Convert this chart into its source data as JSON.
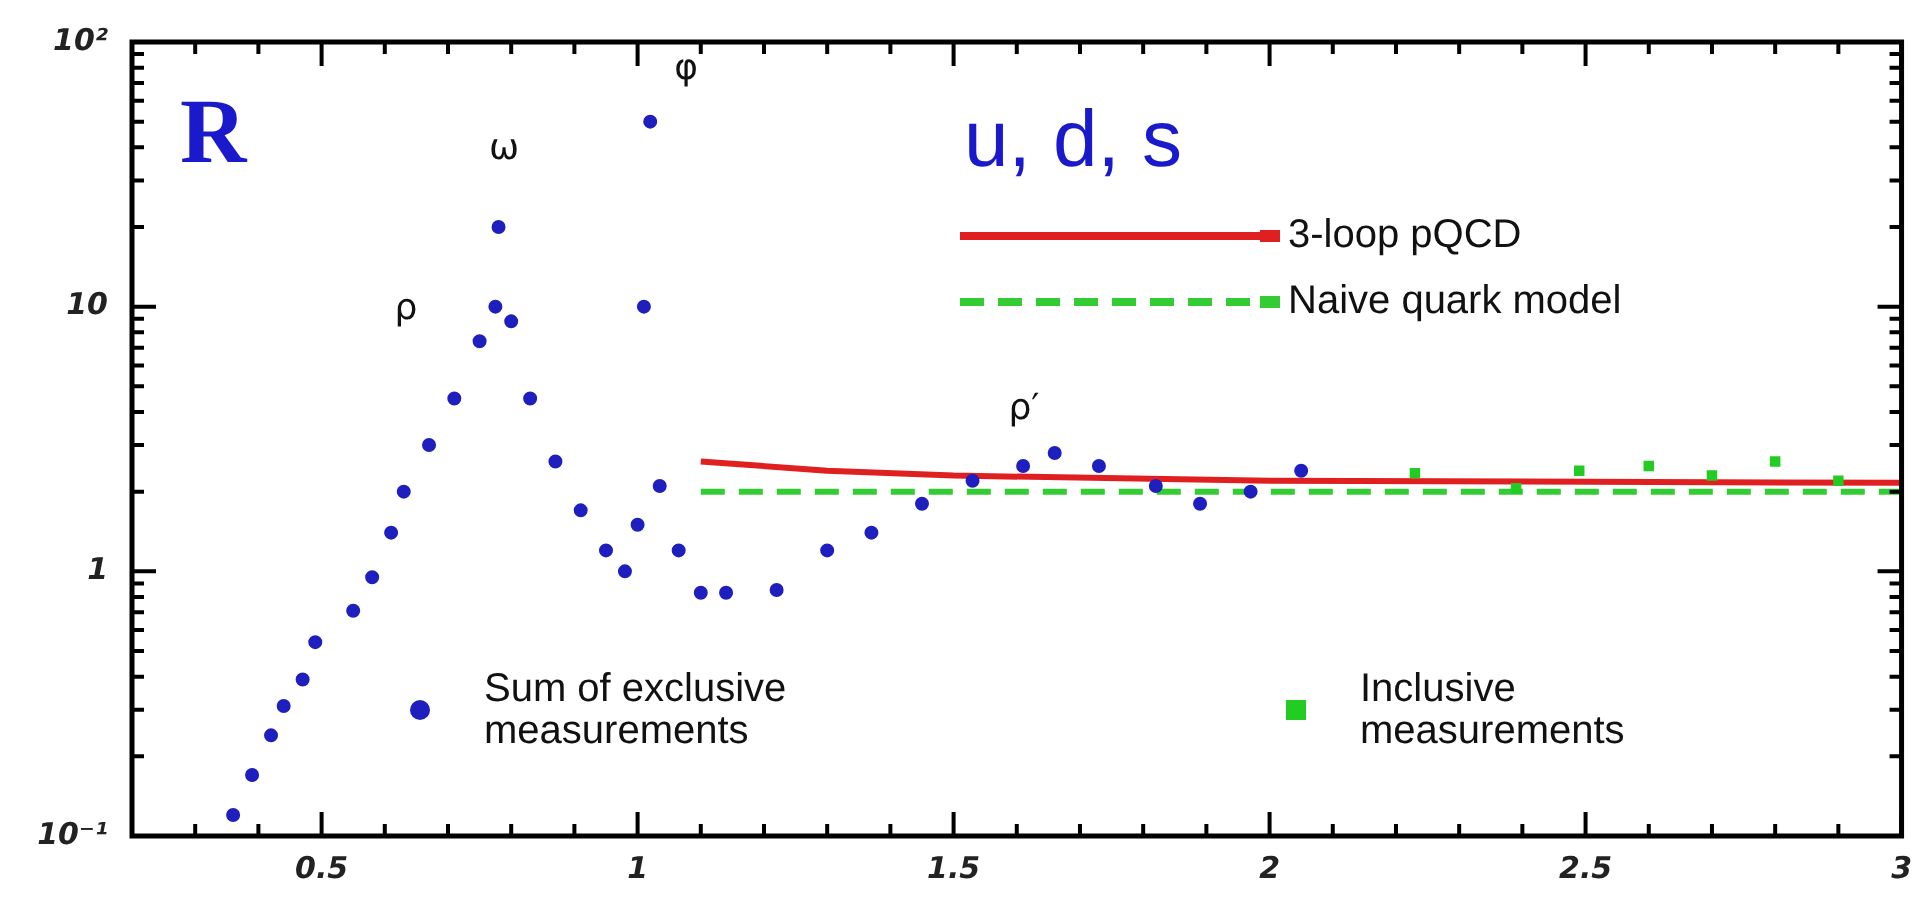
{
  "chart_data": {
    "type": "scatter",
    "title": "u, d, s",
    "ylabel": "R",
    "log": "y",
    "grid": false,
    "legend": "bottom",
    "xlim": [
      0.2,
      3
    ],
    "ylim": [
      0.1,
      100
    ],
    "xticks": [
      {
        "value": 0.2,
        "label": null
      },
      {
        "value": 0.3,
        "label": null
      },
      {
        "value": 0.4,
        "label": null
      },
      0.5,
      {
        "value": 0.6,
        "label": null
      },
      {
        "value": 0.7,
        "label": null
      },
      {
        "value": 0.8,
        "label": null
      },
      {
        "value": 0.9,
        "label": null
      },
      1,
      {
        "value": 1.1,
        "label": null
      },
      {
        "value": 1.2,
        "label": null
      },
      {
        "value": 1.3,
        "label": null
      },
      {
        "value": 1.4,
        "label": null
      },
      1.5,
      {
        "value": 1.6,
        "label": null
      },
      {
        "value": 1.7,
        "label": null
      },
      {
        "value": 1.8,
        "label": null
      },
      {
        "value": 1.9,
        "label": null
      },
      2,
      {
        "value": 2.1,
        "label": null
      },
      {
        "value": 2.2,
        "label": null
      },
      {
        "value": 2.3,
        "label": null
      },
      {
        "value": 2.4,
        "label": null
      },
      2.5,
      {
        "value": 2.6,
        "label": null
      },
      {
        "value": 2.7,
        "label": null
      },
      {
        "value": 2.8,
        "label": null
      },
      {
        "value": 2.9,
        "label": null
      },
      3
    ],
    "yticks": [
      {
        "value": 0.1,
        "label": "10⁻¹"
      },
      {
        "value": 0.2,
        "label": null
      },
      {
        "value": 0.3,
        "label": null
      },
      {
        "value": 0.4,
        "label": null
      },
      {
        "value": 0.5,
        "label": null
      },
      {
        "value": 0.6,
        "label": null
      },
      {
        "value": 0.7,
        "label": null
      },
      {
        "value": 0.8,
        "label": null
      },
      {
        "value": 0.9,
        "label": null
      },
      1,
      {
        "value": 2,
        "label": null
      },
      {
        "value": 3,
        "label": null
      },
      {
        "value": 4,
        "label": null
      },
      {
        "value": 5,
        "label": null
      },
      {
        "value": 6,
        "label": null
      },
      {
        "value": 7,
        "label": null
      },
      {
        "value": 8,
        "label": null
      },
      {
        "value": 9,
        "label": null
      },
      10,
      {
        "value": 20,
        "label": null
      },
      {
        "value": 30,
        "label": null
      },
      {
        "value": 40,
        "label": null
      },
      {
        "value": 50,
        "label": null
      },
      {
        "value": 60,
        "label": null
      },
      {
        "value": 70,
        "label": null
      },
      {
        "value": 80,
        "label": null
      },
      {
        "value": 90,
        "label": null
      },
      {
        "value": 100,
        "label": "10²"
      }
    ],
    "series": [
      {
        "name": "3-loop pQCD",
        "type": "line",
        "color": "#e02020",
        "line_style": "solid",
        "marker": "none",
        "x": [
          1.1,
          1.3,
          1.5,
          2,
          3
        ],
        "values": [
          2.6,
          2.4,
          2.3,
          2.2,
          2.16
        ]
      },
      {
        "name": "Naive quark model",
        "type": "line",
        "color": "#33cc33",
        "line_style": "dashed",
        "marker": "none",
        "x": [
          1.1,
          3
        ],
        "values": [
          2,
          2
        ]
      },
      {
        "name": "Sum of exclusive measurements",
        "color": "#1f1fbf",
        "marker": "circle",
        "x": [
          0.36,
          0.39,
          0.42,
          0.44,
          0.47,
          0.49,
          0.55,
          0.58,
          0.61,
          0.63,
          0.67,
          0.71,
          0.75,
          0.775,
          0.78,
          0.8,
          0.83,
          0.87,
          0.91,
          0.95,
          0.98,
          1.0,
          1.01,
          1.02,
          1.035,
          1.065,
          1.1,
          1.14,
          1.22,
          1.3,
          1.37,
          1.45,
          1.53,
          1.61,
          1.66,
          1.73,
          1.82,
          1.89,
          1.97,
          2.05
        ],
        "values": [
          0.12,
          0.17,
          0.24,
          0.31,
          0.39,
          0.54,
          0.71,
          0.95,
          1.4,
          2.0,
          3.0,
          4.5,
          7.4,
          10,
          20,
          8.8,
          4.5,
          2.6,
          1.7,
          1.2,
          1.0,
          1.5,
          10,
          50,
          2.1,
          1.2,
          0.83,
          0.83,
          0.85,
          1.2,
          1.4,
          1.8,
          2.2,
          2.5,
          2.8,
          2.5,
          2.1,
          1.8,
          2.0,
          2.4
        ]
      },
      {
        "name": "Inclusive measurements",
        "color": "#22cc22",
        "marker": "square",
        "x": [
          2.23,
          2.39,
          2.49,
          2.6,
          2.7,
          2.8,
          2.9
        ],
        "values": [
          2.35,
          2.06,
          2.4,
          2.5,
          2.3,
          2.6,
          2.2
        ]
      }
    ],
    "annotations": [
      "ρ",
      "ω",
      "φ",
      "ρ′"
    ]
  }
}
